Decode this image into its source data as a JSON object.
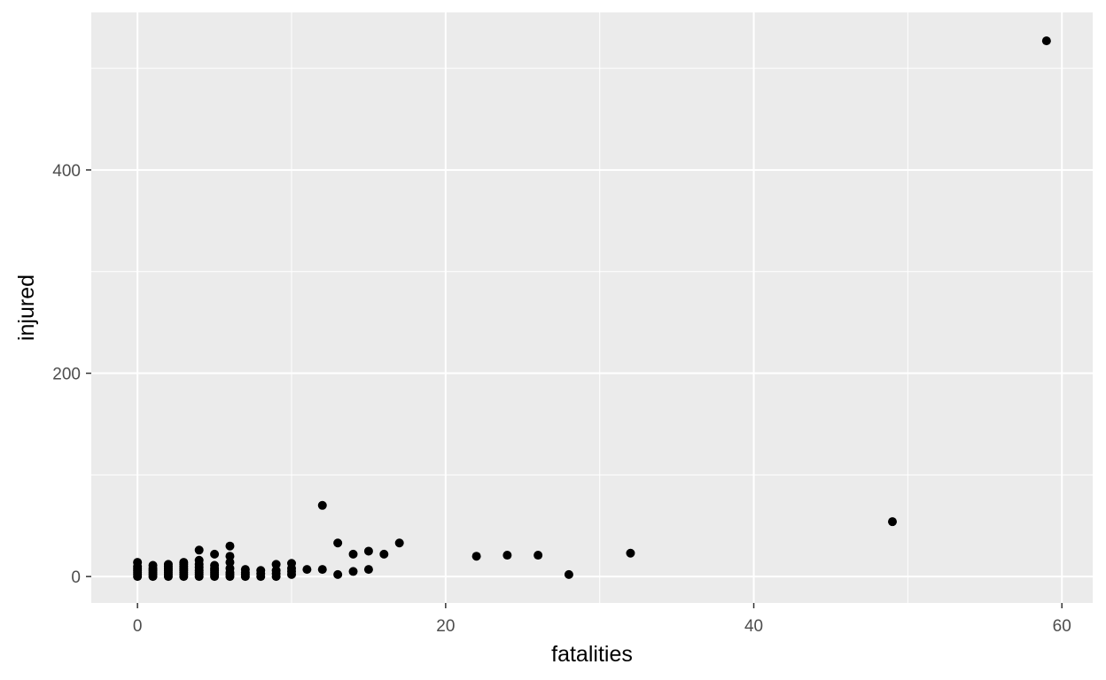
{
  "chart_data": {
    "type": "scatter",
    "title": "",
    "xlabel": "fatalities",
    "ylabel": "injured",
    "xlim": [
      -3,
      62
    ],
    "ylim": [
      -26,
      555
    ],
    "x_major_ticks": [
      0,
      20,
      40,
      60
    ],
    "x_minor_ticks": [
      10,
      30,
      50
    ],
    "y_major_ticks": [
      0,
      200,
      400
    ],
    "y_minor_ticks": [
      100,
      300,
      500
    ],
    "x_tick_labels": [
      "0",
      "20",
      "40",
      "60"
    ],
    "y_tick_labels": [
      "0",
      "200",
      "400"
    ],
    "grid": true,
    "legend": "none",
    "colors": {
      "panel_background": "#ebebeb",
      "grid": "#ffffff",
      "point": "#000000",
      "tick": "#333333"
    },
    "points": [
      {
        "x": 0,
        "y": 0
      },
      {
        "x": 0,
        "y": 2
      },
      {
        "x": 0,
        "y": 4
      },
      {
        "x": 0,
        "y": 6
      },
      {
        "x": 0,
        "y": 8
      },
      {
        "x": 0,
        "y": 10
      },
      {
        "x": 0,
        "y": 14
      },
      {
        "x": 1,
        "y": 0
      },
      {
        "x": 1,
        "y": 2
      },
      {
        "x": 1,
        "y": 4
      },
      {
        "x": 1,
        "y": 6
      },
      {
        "x": 1,
        "y": 8
      },
      {
        "x": 1,
        "y": 11
      },
      {
        "x": 2,
        "y": 0
      },
      {
        "x": 2,
        "y": 2
      },
      {
        "x": 2,
        "y": 4
      },
      {
        "x": 2,
        "y": 6
      },
      {
        "x": 2,
        "y": 8
      },
      {
        "x": 2,
        "y": 10
      },
      {
        "x": 2,
        "y": 12
      },
      {
        "x": 3,
        "y": 0
      },
      {
        "x": 3,
        "y": 2
      },
      {
        "x": 3,
        "y": 4
      },
      {
        "x": 3,
        "y": 6
      },
      {
        "x": 3,
        "y": 8
      },
      {
        "x": 3,
        "y": 10
      },
      {
        "x": 3,
        "y": 12
      },
      {
        "x": 3,
        "y": 14
      },
      {
        "x": 4,
        "y": 0
      },
      {
        "x": 4,
        "y": 2
      },
      {
        "x": 4,
        "y": 4
      },
      {
        "x": 4,
        "y": 6
      },
      {
        "x": 4,
        "y": 9
      },
      {
        "x": 4,
        "y": 12
      },
      {
        "x": 4,
        "y": 16
      },
      {
        "x": 4,
        "y": 26
      },
      {
        "x": 5,
        "y": 0
      },
      {
        "x": 5,
        "y": 2
      },
      {
        "x": 5,
        "y": 4
      },
      {
        "x": 5,
        "y": 6
      },
      {
        "x": 5,
        "y": 8
      },
      {
        "x": 5,
        "y": 11
      },
      {
        "x": 5,
        "y": 22
      },
      {
        "x": 6,
        "y": 0
      },
      {
        "x": 6,
        "y": 2
      },
      {
        "x": 6,
        "y": 4
      },
      {
        "x": 6,
        "y": 8
      },
      {
        "x": 6,
        "y": 14
      },
      {
        "x": 6,
        "y": 20
      },
      {
        "x": 6,
        "y": 30
      },
      {
        "x": 7,
        "y": 0
      },
      {
        "x": 7,
        "y": 2
      },
      {
        "x": 7,
        "y": 4
      },
      {
        "x": 7,
        "y": 7
      },
      {
        "x": 8,
        "y": 0
      },
      {
        "x": 8,
        "y": 3
      },
      {
        "x": 8,
        "y": 6
      },
      {
        "x": 9,
        "y": 0
      },
      {
        "x": 9,
        "y": 3
      },
      {
        "x": 9,
        "y": 6
      },
      {
        "x": 9,
        "y": 12
      },
      {
        "x": 10,
        "y": 2
      },
      {
        "x": 10,
        "y": 5
      },
      {
        "x": 10,
        "y": 8
      },
      {
        "x": 10,
        "y": 13
      },
      {
        "x": 11,
        "y": 7
      },
      {
        "x": 12,
        "y": 7
      },
      {
        "x": 12,
        "y": 70
      },
      {
        "x": 13,
        "y": 2
      },
      {
        "x": 13,
        "y": 33
      },
      {
        "x": 14,
        "y": 5
      },
      {
        "x": 14,
        "y": 22
      },
      {
        "x": 15,
        "y": 7
      },
      {
        "x": 15,
        "y": 25
      },
      {
        "x": 16,
        "y": 22
      },
      {
        "x": 17,
        "y": 33
      },
      {
        "x": 22,
        "y": 20
      },
      {
        "x": 24,
        "y": 21
      },
      {
        "x": 26,
        "y": 21
      },
      {
        "x": 28,
        "y": 2
      },
      {
        "x": 32,
        "y": 23
      },
      {
        "x": 49,
        "y": 54
      },
      {
        "x": 59,
        "y": 527
      }
    ]
  }
}
